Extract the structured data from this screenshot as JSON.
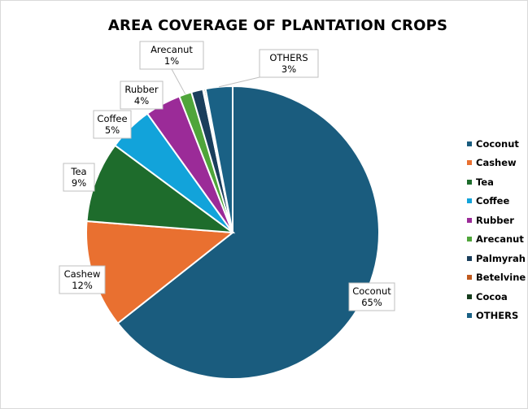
{
  "chart_data": {
    "type": "pie",
    "title": "AREA COVERAGE OF PLANTATION CROPS",
    "series": [
      {
        "name": "Coconut",
        "value": 65,
        "label": "Coconut",
        "pct": "65%",
        "color": "#1a5c7e"
      },
      {
        "name": "Cashew",
        "value": 12,
        "label": "Cashew",
        "pct": "12%",
        "color": "#e97030"
      },
      {
        "name": "Tea",
        "value": 9,
        "label": "Tea",
        "pct": "9%",
        "color": "#1e6c2c"
      },
      {
        "name": "Coffee",
        "value": 5,
        "label": "Coffee",
        "pct": "5%",
        "color": "#12a3da"
      },
      {
        "name": "Rubber",
        "value": 4,
        "label": "Rubber",
        "pct": "4%",
        "color": "#9b2b98"
      },
      {
        "name": "Arecanut",
        "value": 1.4,
        "label": "Arecanut",
        "pct": "1%",
        "color": "#4fa53a"
      },
      {
        "name": "Palmyrah",
        "value": 1.3,
        "label": null,
        "pct": null,
        "color": "#1a3e5c"
      },
      {
        "name": "Betelvine",
        "value": 0.1,
        "label": null,
        "pct": null,
        "color": "#c05a1e"
      },
      {
        "name": "Cocoa",
        "value": 0.2,
        "label": null,
        "pct": null,
        "color": "#163d1d"
      },
      {
        "name": "OTHERS",
        "value": 3,
        "label": "OTHERS",
        "pct": "3%",
        "color": "#1a6185"
      }
    ],
    "legend_position": "right"
  }
}
